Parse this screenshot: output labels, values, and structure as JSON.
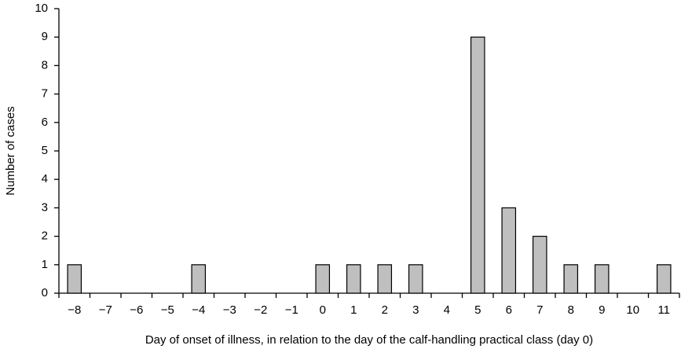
{
  "chart_data": {
    "type": "bar",
    "x_label": "Day of onset of illness, in relation to the day of the calf-handling practical class (day 0)",
    "y_label": "Number of cases",
    "categories": [
      "−8",
      "−7",
      "−6",
      "−5",
      "−4",
      "−3",
      "−2",
      "−1",
      "0",
      "1",
      "2",
      "3",
      "4",
      "5",
      "6",
      "7",
      "8",
      "9",
      "10",
      "11"
    ],
    "values": [
      1,
      0,
      0,
      0,
      1,
      0,
      0,
      0,
      1,
      1,
      1,
      1,
      0,
      9,
      3,
      2,
      1,
      1,
      0,
      1
    ],
    "color": "#bfbfbf",
    "ylim": [
      0,
      10
    ],
    "yticks": [
      0,
      1,
      2,
      3,
      4,
      5,
      6,
      7,
      8,
      9,
      10
    ],
    "grid": false
  }
}
